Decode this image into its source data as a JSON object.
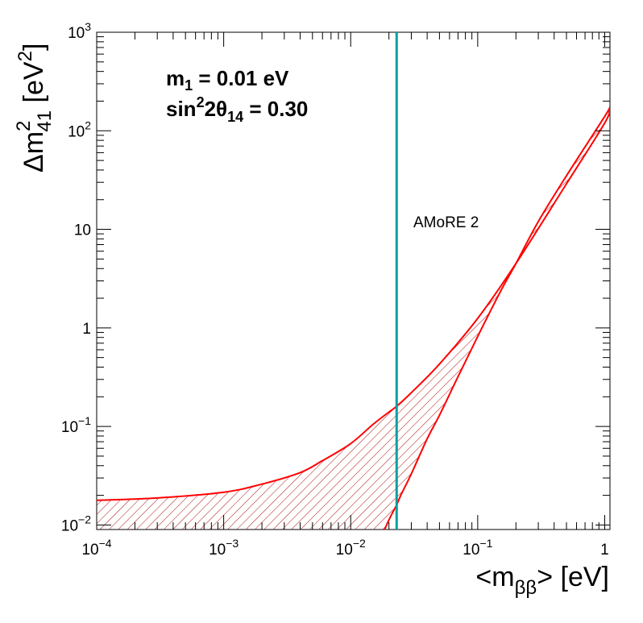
{
  "chart_data": {
    "type": "line",
    "title": "",
    "xlabel": {
      "main": "<m",
      "sub": "ββ",
      "tail": "> [eV]"
    },
    "ylabel": {
      "main": "Δm",
      "sup": "2",
      "sub": "41",
      "tail": " [eV",
      "tail_sup": "2",
      "close": "]"
    },
    "x_scale": "log",
    "y_scale": "log",
    "xlim": [
      0.0001,
      1.1
    ],
    "ylim": [
      0.009,
      1000
    ],
    "grid": false,
    "x_ticks": [
      {
        "value": 0.0001,
        "base": "10",
        "exp": "−4"
      },
      {
        "value": 0.001,
        "base": "10",
        "exp": "−3"
      },
      {
        "value": 0.01,
        "base": "10",
        "exp": "−2"
      },
      {
        "value": 0.1,
        "base": "10",
        "exp": "−1"
      },
      {
        "value": 1,
        "base": "1",
        "exp": ""
      }
    ],
    "y_ticks": [
      {
        "value": 0.01,
        "base": "10",
        "exp": "−2"
      },
      {
        "value": 0.1,
        "base": "10",
        "exp": "−1"
      },
      {
        "value": 1,
        "base": "1",
        "exp": ""
      },
      {
        "value": 10,
        "base": "10",
        "exp": ""
      },
      {
        "value": 100,
        "base": "10",
        "exp": "2"
      },
      {
        "value": 1000,
        "base": "10",
        "exp": "3"
      }
    ],
    "annotations": {
      "m1_label": {
        "prefix": "m",
        "sub": "1",
        "suffix": " = 0.01 eV"
      },
      "sin_label": {
        "prefix": "sin",
        "sup": "2",
        "mid": "2θ",
        "sub": "14",
        "suffix": " = 0.30"
      }
    },
    "reference_line": {
      "label": "AMoRE 2",
      "x": 0.023,
      "color": "#00a0a0"
    },
    "series": [
      {
        "name": "upper bound",
        "color": "#ff0000",
        "x": [
          0.0001,
          0.0003,
          0.001,
          0.002,
          0.004,
          0.006,
          0.01,
          0.015,
          0.02,
          0.023,
          0.03,
          0.05,
          0.1,
          0.2,
          0.5,
          1.0,
          1.1
        ],
        "y": [
          0.0178,
          0.0188,
          0.0215,
          0.026,
          0.034,
          0.045,
          0.067,
          0.105,
          0.14,
          0.16,
          0.22,
          0.43,
          1.25,
          4.5,
          29,
          120,
          170
        ]
      },
      {
        "name": "lower bound",
        "color": "#ff0000",
        "x": [
          0.0185,
          0.0195,
          0.021,
          0.023,
          0.025,
          0.03,
          0.04,
          0.05,
          0.07,
          0.1,
          0.15,
          0.2,
          0.3,
          0.5,
          1.0,
          1.1
        ],
        "y": [
          0.009,
          0.0105,
          0.0128,
          0.016,
          0.0205,
          0.033,
          0.075,
          0.13,
          0.32,
          0.82,
          2.3,
          4.5,
          12,
          35,
          140,
          175
        ]
      }
    ],
    "hatched_region": {
      "between": [
        "upper bound",
        "lower bound"
      ],
      "color": "#aa1111"
    }
  }
}
